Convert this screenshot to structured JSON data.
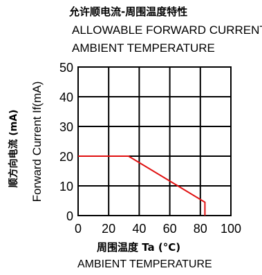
{
  "chart_data": {
    "type": "line",
    "title_cn": "允许顺电流-周围温度特性",
    "title_en_line1": "ALLOWABLE FORWARD CURRENT",
    "title_en_line2": "AMBIENT TEMPERATURE",
    "xlabel_cn": "周围温度 Ta (°C)",
    "xlabel_en": "AMBIENT TEMPERATURE",
    "ylabel_cn": "顺方向电流 (mA)",
    "ylabel_en": "Forward Current If(mA)",
    "xlim": [
      0,
      100
    ],
    "ylim": [
      0,
      50
    ],
    "x_ticks": [
      0,
      20,
      40,
      60,
      80,
      100
    ],
    "y_ticks": [
      0,
      10,
      20,
      30,
      40,
      50
    ],
    "grid": true,
    "series": [
      {
        "color": "#e01010",
        "points": [
          {
            "x": 0,
            "y": 20
          },
          {
            "x": 33,
            "y": 20
          },
          {
            "x": 83,
            "y": 4.5
          },
          {
            "x": 83,
            "y": 0
          }
        ]
      }
    ]
  }
}
